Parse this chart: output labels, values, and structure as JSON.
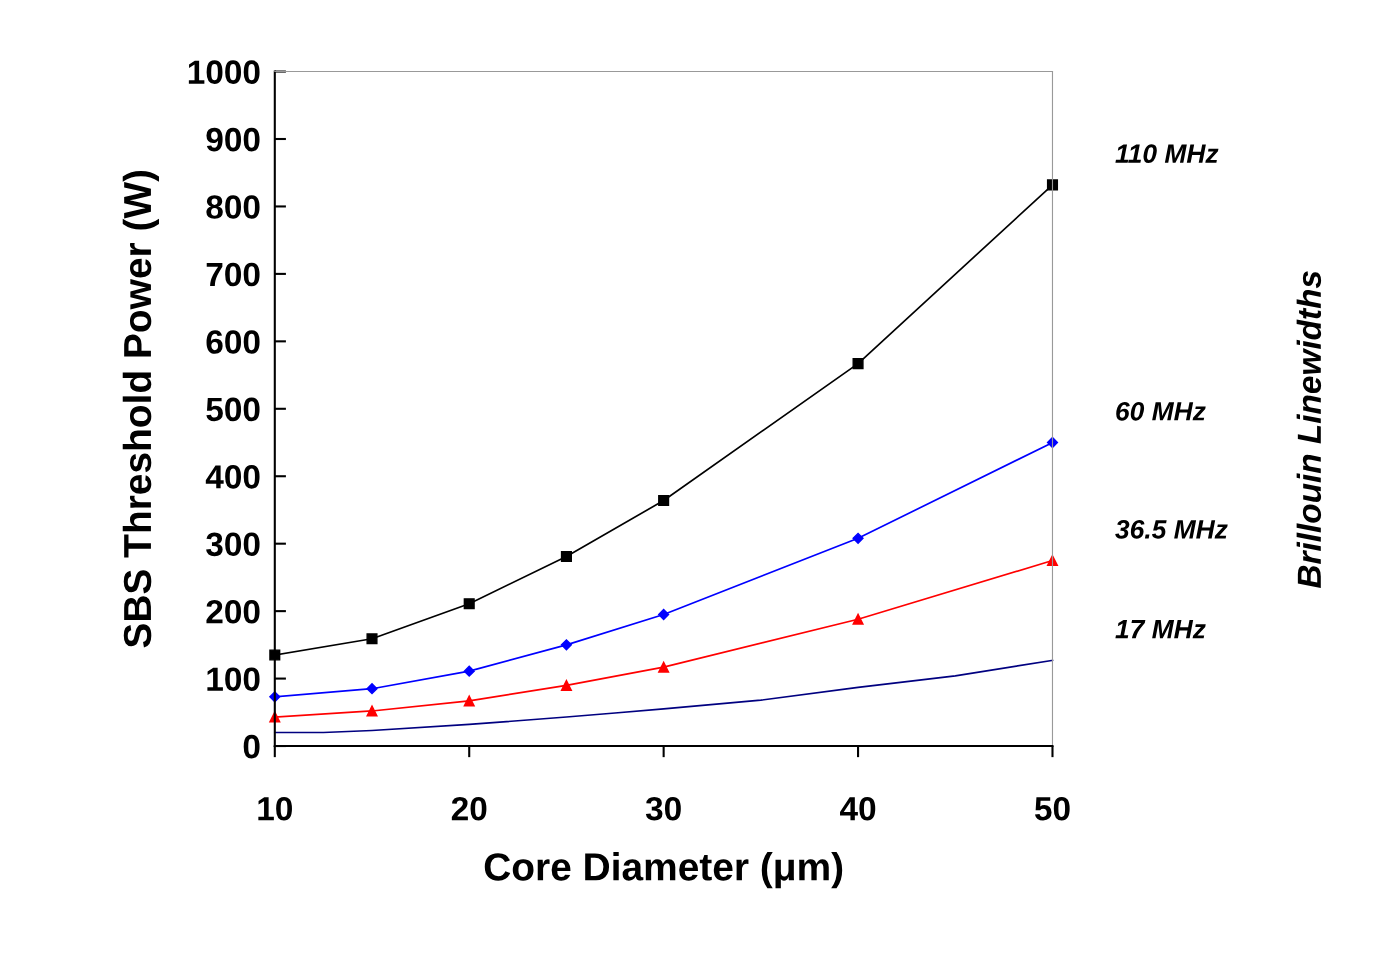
{
  "chart_data": {
    "type": "line",
    "xlabel": "Core Diameter (μm)",
    "ylabel": "SBS Threshold Power (W)",
    "xlim": [
      10,
      50
    ],
    "xticks": [
      10,
      20,
      30,
      40,
      50
    ],
    "ylim": [
      0,
      1000
    ],
    "yticks": [
      0,
      100,
      200,
      300,
      400,
      500,
      600,
      700,
      800,
      900,
      1000
    ],
    "grid": false,
    "legend": false,
    "series": [
      {
        "name": "110 MHz",
        "color": "#000000",
        "marker": "square",
        "x": [
          10,
          15,
          20,
          25,
          30,
          40,
          50
        ],
        "values": [
          135,
          159,
          211,
          281,
          364,
          567,
          832
        ]
      },
      {
        "name": "60 MHz",
        "color": "#0000ff",
        "marker": "diamond",
        "x": [
          10,
          15,
          20,
          25,
          30,
          40,
          50
        ],
        "values": [
          73,
          85,
          111,
          150,
          195,
          308,
          450
        ]
      },
      {
        "name": "36.5 MHz",
        "color": "#ff0000",
        "marker": "triangle",
        "x": [
          10,
          15,
          20,
          25,
          30,
          40,
          50
        ],
        "values": [
          43,
          52,
          67,
          90,
          117,
          188,
          275
        ]
      },
      {
        "name": "17 MHz",
        "color": "#000080",
        "marker": "none",
        "x": [
          10,
          12.5,
          15,
          20,
          25,
          27.5,
          30,
          35,
          40,
          45,
          50
        ],
        "values": [
          20,
          20,
          23,
          32,
          43,
          49,
          55,
          68,
          87,
          104,
          127
        ]
      }
    ],
    "annotations": [
      "Brillouin Linewidths"
    ]
  }
}
